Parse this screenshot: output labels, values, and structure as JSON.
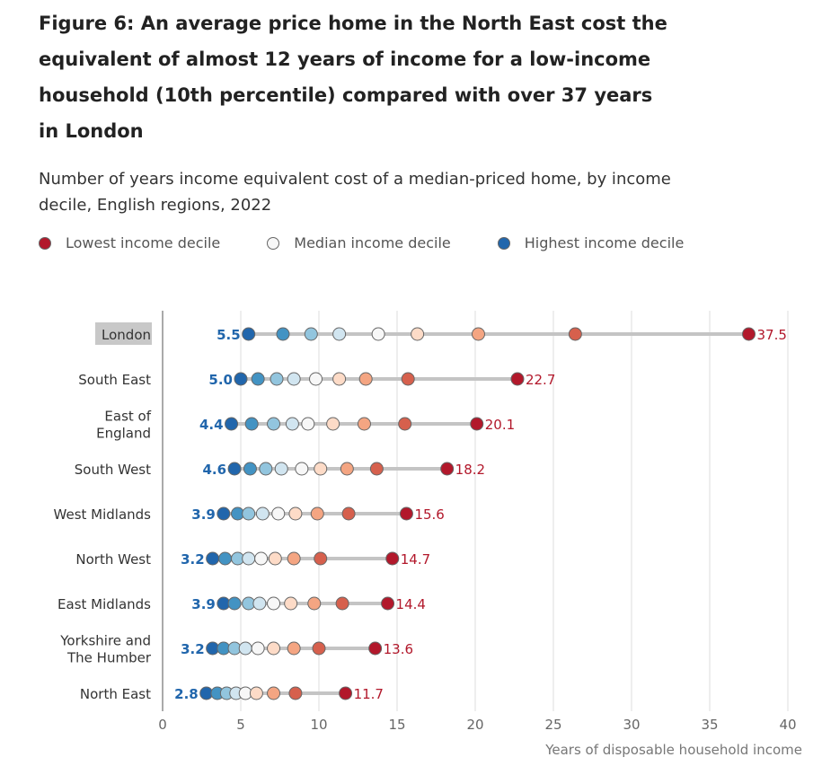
{
  "title": "Figure 6: An average price home in the North East cost the equivalent of almost 12 years of income for a low-income household (10th percentile) compared with over 37 years in London",
  "subtitle": "Number of years income equivalent cost of a median-priced home, by income decile, English regions, 2022",
  "legend": [
    {
      "label": "Lowest income decile",
      "color": "#b2182b"
    },
    {
      "label": "Median income decile",
      "color": "#f7f7f7"
    },
    {
      "label": "Highest income decile",
      "color": "#2166ac"
    }
  ],
  "chart_data": {
    "type": "dot",
    "xlabel": "Years of disposable household income",
    "xlim": [
      0,
      40
    ],
    "xticks": [
      0,
      5,
      10,
      15,
      20,
      25,
      30,
      35,
      40
    ],
    "grid": true,
    "highlighted_category": "London",
    "decile_colors": [
      "#2166ac",
      "#4393c3",
      "#92c5de",
      "#d1e5f0",
      "#f7f7f7",
      "#fddbc7",
      "#f4a582",
      "#d6604d",
      "#b2182b"
    ],
    "label_colors": {
      "highest": "#2166ac",
      "lowest": "#b2182b"
    },
    "categories": [
      "London",
      "South East",
      "East of England",
      "South West",
      "West Midlands",
      "North West",
      "East Midlands",
      "Yorkshire and The Humber",
      "North East"
    ],
    "category_lines": [
      [
        "London"
      ],
      [
        "South East"
      ],
      [
        "East of",
        "England"
      ],
      [
        "South West"
      ],
      [
        "West Midlands"
      ],
      [
        "North West"
      ],
      [
        "East Midlands"
      ],
      [
        "Yorkshire and",
        "The Humber"
      ],
      [
        "North East"
      ]
    ],
    "values": [
      [
        5.5,
        7.7,
        9.5,
        11.3,
        13.8,
        16.3,
        20.2,
        26.4,
        37.5
      ],
      [
        5.0,
        6.1,
        7.3,
        8.4,
        9.8,
        11.3,
        13.0,
        15.7,
        22.7
      ],
      [
        4.4,
        5.7,
        7.1,
        8.3,
        9.3,
        10.9,
        12.9,
        15.5,
        20.1
      ],
      [
        4.6,
        5.6,
        6.6,
        7.6,
        8.9,
        10.1,
        11.8,
        13.7,
        18.2
      ],
      [
        3.9,
        4.8,
        5.5,
        6.4,
        7.4,
        8.5,
        9.9,
        11.9,
        15.6
      ],
      [
        3.2,
        4.0,
        4.8,
        5.5,
        6.3,
        7.2,
        8.4,
        10.1,
        14.7
      ],
      [
        3.9,
        4.6,
        5.5,
        6.2,
        7.1,
        8.2,
        9.7,
        11.5,
        14.4
      ],
      [
        3.2,
        3.9,
        4.6,
        5.3,
        6.1,
        7.1,
        8.4,
        10.0,
        13.6
      ],
      [
        2.8,
        3.5,
        4.1,
        4.7,
        5.3,
        6.0,
        7.1,
        8.5,
        11.7
      ]
    ],
    "low_labels": [
      "5.5",
      "5.0",
      "4.4",
      "4.6",
      "3.9",
      "3.2",
      "3.9",
      "3.2",
      "2.8"
    ],
    "high_labels": [
      "37.5",
      "22.7",
      "20.1",
      "18.2",
      "15.6",
      "14.7",
      "14.4",
      "13.6",
      "11.7"
    ]
  }
}
